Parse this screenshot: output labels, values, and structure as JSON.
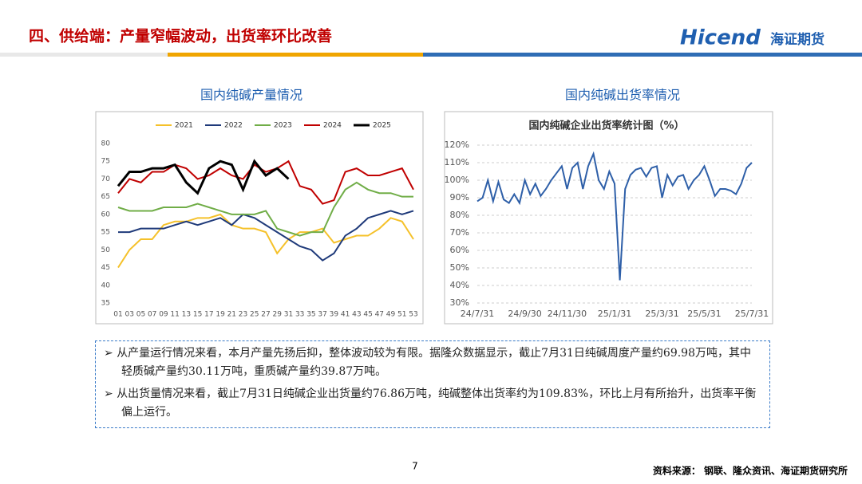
{
  "header": {
    "title": "四、供给端：产量窄幅波动，出货率环比改善",
    "logo": "Hicend",
    "logo_cn": "海证期货"
  },
  "panel_titles": [
    "国内纯碱产量情况",
    "国内纯碱出货率情况"
  ],
  "chart_data": [
    {
      "type": "line",
      "legend": "top",
      "categories": [
        "01",
        "03",
        "05",
        "07",
        "09",
        "11",
        "13",
        "15",
        "17",
        "19",
        "21",
        "23",
        "25",
        "27",
        "29",
        "31",
        "33",
        "35",
        "37",
        "39",
        "41",
        "43",
        "45",
        "47",
        "49",
        "51",
        "53"
      ],
      "series": [
        {
          "name": "2021",
          "color": "#f5c12a",
          "values": [
            45,
            50,
            53,
            53,
            57,
            58,
            58,
            59,
            59,
            60,
            57,
            56,
            56,
            55,
            49,
            53,
            55,
            55,
            56,
            52,
            53,
            54,
            54,
            56,
            59,
            58,
            53
          ]
        },
        {
          "name": "2022",
          "color": "#1f3a7a",
          "values": [
            55,
            55,
            56,
            56,
            56,
            57,
            58,
            57,
            58,
            59,
            57,
            60,
            59,
            57,
            55,
            53,
            51,
            50,
            47,
            49,
            54,
            56,
            59,
            60,
            61,
            60,
            61
          ]
        },
        {
          "name": "2023",
          "color": "#70ad47",
          "values": [
            62,
            61,
            61,
            61,
            62,
            62,
            62,
            63,
            62,
            61,
            60,
            60,
            60,
            61,
            56,
            55,
            54,
            55,
            55,
            62,
            67,
            69,
            67,
            66,
            66,
            65,
            65
          ]
        },
        {
          "name": "2024",
          "color": "#c00000",
          "values": [
            66,
            70,
            69,
            72,
            72,
            74,
            73,
            70,
            71,
            73,
            71,
            70,
            74,
            72,
            73,
            75,
            68,
            67,
            63,
            64,
            72,
            73,
            71,
            71,
            72,
            73,
            67
          ]
        },
        {
          "name": "2025",
          "color": "#000000",
          "values": [
            68,
            72,
            72,
            73,
            73,
            74,
            69,
            66,
            73,
            75,
            74,
            67,
            75,
            71,
            73,
            70,
            null,
            null,
            null,
            null,
            null,
            null,
            null,
            null,
            null,
            null,
            null
          ]
        }
      ],
      "ylim": [
        35,
        80
      ],
      "yticks": [
        35,
        40,
        45,
        50,
        55,
        60,
        65,
        70,
        75,
        80
      ],
      "grid": false
    },
    {
      "type": "line",
      "title": "国内纯碱企业出货率统计图（%）",
      "categories": [
        "24/7/31",
        null,
        null,
        null,
        null,
        null,
        null,
        null,
        null,
        "24/9/30",
        null,
        null,
        null,
        null,
        null,
        null,
        null,
        "24/11/30",
        null,
        null,
        null,
        null,
        null,
        null,
        null,
        null,
        "25/1/31",
        null,
        null,
        null,
        null,
        null,
        null,
        null,
        null,
        "25/3/31",
        null,
        null,
        null,
        null,
        null,
        null,
        null,
        "25/5/31",
        null,
        null,
        null,
        null,
        null,
        null,
        null,
        null,
        "25/7/31"
      ],
      "series": [
        {
          "name": "出货率",
          "color": "#2e5fa8",
          "values": [
            88,
            90,
            100,
            88,
            99,
            89,
            87,
            92,
            87,
            100,
            92,
            98,
            91,
            95,
            100,
            104,
            108,
            95,
            107,
            110,
            95,
            108,
            115,
            100,
            95,
            105,
            98,
            43,
            95,
            103,
            106,
            107,
            102,
            107,
            108,
            90,
            103,
            97,
            102,
            103,
            95,
            100,
            103,
            108,
            100,
            91,
            95,
            95,
            94,
            92,
            98,
            107,
            110
          ]
        }
      ],
      "ylim": [
        30,
        120
      ],
      "yticks": [
        {
          "value": 30,
          "label": "30%"
        },
        {
          "value": 40,
          "label": "40%"
        },
        {
          "value": 50,
          "label": "50%"
        },
        {
          "value": 60,
          "label": "60%"
        },
        {
          "value": 70,
          "label": "70%"
        },
        {
          "value": 80,
          "label": "80%"
        },
        {
          "value": 90,
          "label": "90%"
        },
        {
          "value": 100,
          "label": "100%"
        },
        {
          "value": 110,
          "label": "110%"
        },
        {
          "value": 120,
          "label": "120%"
        }
      ],
      "grid": true
    }
  ],
  "bullets": [
    "从产量运行情况来看，本月产量先扬后抑，整体波动较为有限。据隆众数据显示，截止7月31日纯碱周度产量约69.98万吨，其中轻质碱产量约30.11万吨，重质碱产量约39.87万吨。",
    "从出货量情况来看，截止7月31日纯碱企业出货量约76.86万吨，纯碱整体出货率约为109.83%，环比上月有所抬升，出货率平衡偏上运行。"
  ],
  "page_number": "7",
  "source": "资料来源：  钢联、隆众资讯、海证期货研究所"
}
